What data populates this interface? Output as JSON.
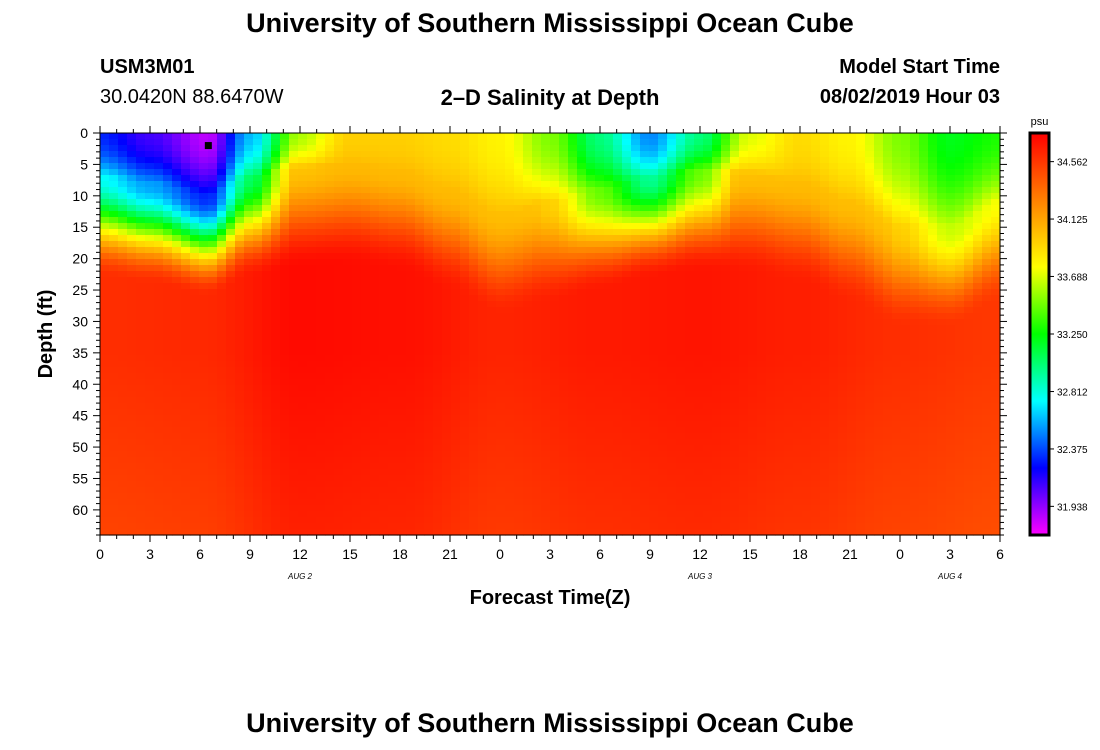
{
  "header": {
    "title": "University of Southern Mississippi Ocean Cube",
    "station_id": "USM3M01",
    "station_coords": "30.0420N 88.6470W",
    "plot_title": "2–D Salinity at Depth",
    "model_start_label": "Model Start Time",
    "model_start_value": "08/02/2019 Hour 03"
  },
  "footer": {
    "title": "University of Southern Mississippi Ocean Cube"
  },
  "chart_data": {
    "type": "heatmap",
    "title": "2–D Salinity at Depth",
    "xlabel": "Forecast Time(Z)",
    "ylabel": "Depth (ft)",
    "x_tick_labels": [
      "0",
      "3",
      "6",
      "9",
      "12",
      "15",
      "18",
      "21",
      "0",
      "3",
      "6",
      "9",
      "12",
      "15",
      "18",
      "21",
      "0",
      "3",
      "6"
    ],
    "x_range_hours": [
      0,
      54
    ],
    "date_labels": [
      {
        "label": "AUG 2",
        "hour": 12
      },
      {
        "label": "AUG 3",
        "hour": 36
      },
      {
        "label": "AUG 4",
        "hour": 51
      }
    ],
    "y_tick_labels": [
      "0",
      "5",
      "10",
      "15",
      "20",
      "25",
      "30",
      "35",
      "40",
      "45",
      "50",
      "55",
      "60"
    ],
    "y_range_ft": [
      0,
      64
    ],
    "y_inverted": true,
    "colorbar": {
      "unit": "psu",
      "ticks": [
        "34.562",
        "34.125",
        "33.688",
        "33.250",
        "32.812",
        "32.375",
        "31.938"
      ],
      "range": [
        31.72,
        34.78
      ],
      "colormap": [
        "#ff00ff",
        "#0000ff",
        "#00ffff",
        "#00ff00",
        "#ffff00",
        "#ff8000",
        "#ff0000"
      ]
    },
    "marker": {
      "hour": 6.5,
      "depth_ft": 2
    },
    "surface_salinity_psu": [
      {
        "hour": 0,
        "value": 32.3
      },
      {
        "hour": 3,
        "value": 32.1
      },
      {
        "hour": 6.5,
        "value": 31.85
      },
      {
        "hour": 9,
        "value": 32.6
      },
      {
        "hour": 12,
        "value": 33.6
      },
      {
        "hour": 15,
        "value": 33.95
      },
      {
        "hour": 18,
        "value": 33.95
      },
      {
        "hour": 21,
        "value": 33.9
      },
      {
        "hour": 24,
        "value": 33.8
      },
      {
        "hour": 27,
        "value": 33.5
      },
      {
        "hour": 30,
        "value": 33.0
      },
      {
        "hour": 33,
        "value": 32.5
      },
      {
        "hour": 36,
        "value": 33.0
      },
      {
        "hour": 39,
        "value": 33.7
      },
      {
        "hour": 42,
        "value": 33.9
      },
      {
        "hour": 45,
        "value": 33.8
      },
      {
        "hour": 48,
        "value": 33.5
      },
      {
        "hour": 51,
        "value": 33.2
      },
      {
        "hour": 54,
        "value": 33.3
      }
    ],
    "mixed_layer_depth_ft": [
      {
        "hour": 0,
        "value": 13
      },
      {
        "hour": 3,
        "value": 14
      },
      {
        "hour": 6.5,
        "value": 16
      },
      {
        "hour": 9,
        "value": 13
      },
      {
        "hour": 12,
        "value": 11.5
      },
      {
        "hour": 15,
        "value": 11
      },
      {
        "hour": 18,
        "value": 12
      },
      {
        "hour": 21,
        "value": 15
      },
      {
        "hour": 24,
        "value": 19
      },
      {
        "hour": 27,
        "value": 17
      },
      {
        "hour": 30,
        "value": 15
      },
      {
        "hour": 33,
        "value": 13
      },
      {
        "hour": 36,
        "value": 12
      },
      {
        "hour": 39,
        "value": 12.5
      },
      {
        "hour": 42,
        "value": 14
      },
      {
        "hour": 45,
        "value": 17
      },
      {
        "hour": 48,
        "value": 21
      },
      {
        "hour": 51,
        "value": 21
      },
      {
        "hour": 54,
        "value": 17
      }
    ],
    "deep_salinity_psu": [
      {
        "hour": 0,
        "value": 34.6
      },
      {
        "hour": 6,
        "value": 34.62
      },
      {
        "hour": 12,
        "value": 34.74
      },
      {
        "hour": 18,
        "value": 34.72
      },
      {
        "hour": 24,
        "value": 34.64
      },
      {
        "hour": 30,
        "value": 34.68
      },
      {
        "hour": 36,
        "value": 34.7
      },
      {
        "hour": 42,
        "value": 34.66
      },
      {
        "hour": 48,
        "value": 34.6
      },
      {
        "hour": 54,
        "value": 34.56
      }
    ]
  }
}
